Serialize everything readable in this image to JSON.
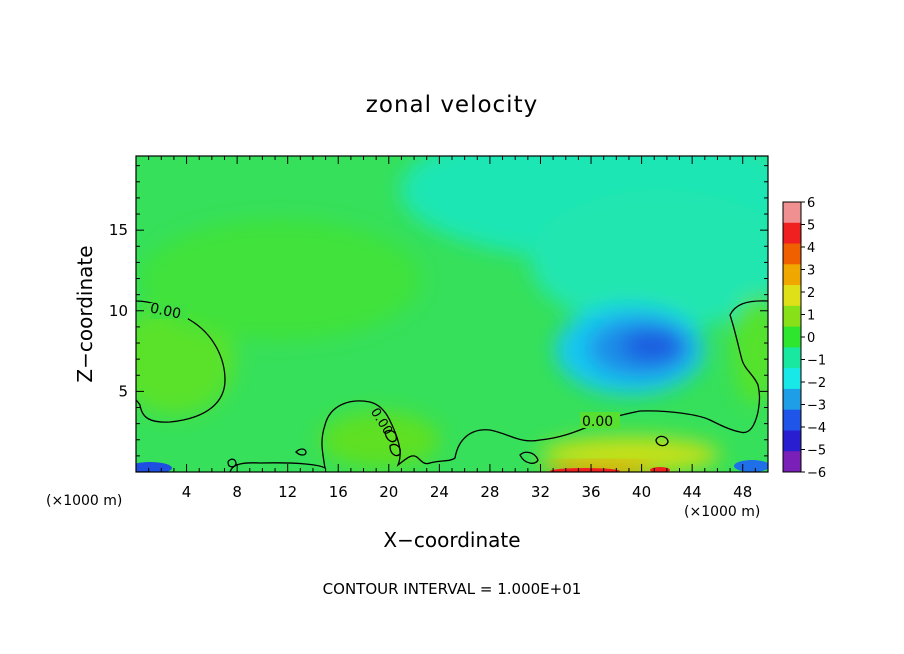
{
  "chart_data": {
    "type": "heatmap",
    "title": "zonal velocity",
    "xlabel": "X−coordinate",
    "ylabel": "Z−coordinate",
    "x_unit_left": "(×1000 m)",
    "x_unit_right": "(×1000 m)",
    "footer": "CONTOUR INTERVAL = 1.000E+01",
    "xlim": [
      0,
      50
    ],
    "ylim": [
      0,
      19.6
    ],
    "x_ticks": [
      4,
      8,
      12,
      16,
      20,
      24,
      28,
      32,
      36,
      40,
      44,
      48
    ],
    "y_ticks": [
      5,
      10,
      15
    ],
    "colorbar": {
      "levels": [
        -6,
        -5,
        -4,
        -3,
        -2,
        -1,
        0,
        1,
        2,
        3,
        4,
        5,
        6
      ],
      "labels": [
        "6",
        "5",
        "4",
        "3",
        "2",
        "1",
        "0",
        "−1",
        "−2",
        "−3",
        "−4",
        "−5",
        "−6"
      ],
      "colors": [
        "#7a1fb8",
        "#2a1fd0",
        "#1f55e8",
        "#1f9ee8",
        "#18e8e8",
        "#18e8a0",
        "#2ee62e",
        "#88e018",
        "#e0e018",
        "#f0a800",
        "#f06000",
        "#f02020",
        "#f09090"
      ]
    },
    "field": {
      "background_value": 0.0,
      "features": [
        {
          "x": 40.5,
          "z": 8.0,
          "value": -4.0
        },
        {
          "x": 38.0,
          "z": 6.5,
          "value": -2.5
        },
        {
          "x": 32.0,
          "z": 15.0,
          "value": -1.5
        },
        {
          "x": 3.0,
          "z": 7.5,
          "value": 1.2
        },
        {
          "x": 48.5,
          "z": 8.0,
          "value": 0.8
        },
        {
          "x": 38.0,
          "z": 0.3,
          "value": 5.0
        },
        {
          "x": 41.5,
          "z": 0.6,
          "value": 3.0
        },
        {
          "x": 1.5,
          "z": 0.2,
          "value": -4.0
        },
        {
          "x": 48.0,
          "z": 0.2,
          "value": -3.0
        }
      ]
    },
    "contour_labels": [
      "0.00",
      "0.00",
      "0.00"
    ]
  }
}
